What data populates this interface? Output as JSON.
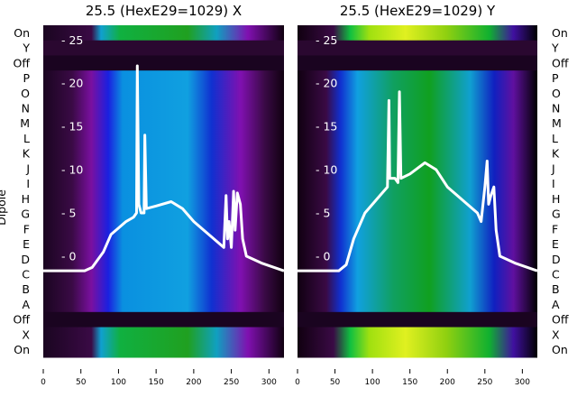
{
  "chart_data": [
    {
      "type": "heatmap",
      "title": "25.5 (HexE29=1029) X",
      "ylabel": "Dipole",
      "row_labels": [
        "On",
        "Y",
        "Off",
        "P",
        "O",
        "N",
        "M",
        "L",
        "K",
        "J",
        "I",
        "H",
        "G",
        "F",
        "E",
        "D",
        "C",
        "B",
        "A",
        "Off",
        "X",
        "On"
      ],
      "xticks": [
        0,
        50,
        100,
        150,
        200,
        250,
        300
      ],
      "yticks": [
        25,
        20,
        15,
        10,
        5,
        0
      ],
      "xlim": [
        0,
        320
      ],
      "ylim": [
        -11.7,
        26.7
      ],
      "line": {
        "color": "#ffffff",
        "x": [
          0,
          55,
          65,
          80,
          90,
          110,
          120,
          124,
          125,
          127,
          130,
          134,
          135,
          137,
          150,
          170,
          185,
          200,
          220,
          240,
          243,
          245,
          247,
          250,
          253,
          255,
          258,
          262,
          265,
          270,
          290,
          320
        ],
        "y": [
          -1.7,
          -1.7,
          -1.3,
          0.5,
          2.5,
          4,
          4.5,
          5,
          22,
          6,
          5,
          5,
          14,
          5.5,
          5.8,
          6.3,
          5.5,
          4,
          2.5,
          1,
          7,
          2,
          4,
          1,
          7.5,
          3,
          7.3,
          6,
          2,
          0,
          -0.8,
          -1.7
        ]
      }
    },
    {
      "type": "heatmap",
      "title": "25.5 (HexE29=1029) Y",
      "row_labels": [
        "On",
        "Y",
        "Off",
        "P",
        "O",
        "N",
        "M",
        "L",
        "K",
        "J",
        "I",
        "H",
        "G",
        "F",
        "E",
        "D",
        "C",
        "B",
        "A",
        "Off",
        "X",
        "On"
      ],
      "xticks": [
        0,
        50,
        100,
        150,
        200,
        250,
        300
      ],
      "yticks": [
        25,
        20,
        15,
        10,
        5,
        0
      ],
      "xlim": [
        0,
        320
      ],
      "ylim": [
        -11.7,
        26.7
      ],
      "line": {
        "color": "#ffffff",
        "x": [
          0,
          55,
          65,
          75,
          90,
          110,
          120,
          122,
          123,
          125,
          130,
          134,
          136,
          138,
          150,
          170,
          185,
          200,
          220,
          240,
          245,
          250,
          253,
          255,
          258,
          262,
          265,
          270,
          290,
          320
        ],
        "y": [
          -1.7,
          -1.7,
          -1,
          2,
          5,
          7,
          8,
          18,
          9,
          9,
          9,
          8.5,
          19,
          9,
          9.5,
          10.8,
          10,
          8,
          6.5,
          5,
          4,
          8,
          11,
          6,
          7,
          8,
          3,
          0,
          -0.8,
          -1.7
        ]
      }
    }
  ]
}
